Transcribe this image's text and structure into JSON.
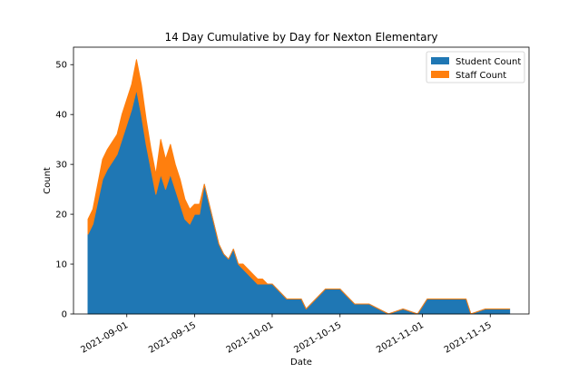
{
  "chart_data": {
    "type": "area",
    "stacked": true,
    "title": "14 Day Cumulative by Day for Nexton Elementary",
    "xlabel": "Date",
    "ylabel": "Count",
    "xlim": [
      "2021-08-21",
      "2021-11-23"
    ],
    "ylim": [
      0,
      53.5
    ],
    "xticks": [
      "2021-09-01",
      "2021-09-15",
      "2021-10-01",
      "2021-10-15",
      "2021-11-01",
      "2021-11-15"
    ],
    "yticks": [
      0,
      10,
      20,
      30,
      40,
      50
    ],
    "grid": false,
    "legend": "upper-right",
    "x": [
      "2021-08-24",
      "2021-08-25",
      "2021-08-27",
      "2021-08-28",
      "2021-08-30",
      "2021-08-31",
      "2021-09-01",
      "2021-09-02",
      "2021-09-03",
      "2021-09-04",
      "2021-09-05",
      "2021-09-06",
      "2021-09-07",
      "2021-09-08",
      "2021-09-09",
      "2021-09-10",
      "2021-09-11",
      "2021-09-12",
      "2021-09-13",
      "2021-09-14",
      "2021-09-15",
      "2021-09-16",
      "2021-09-17",
      "2021-09-18",
      "2021-09-19",
      "2021-09-20",
      "2021-09-21",
      "2021-09-22",
      "2021-09-23",
      "2021-09-24",
      "2021-09-25",
      "2021-09-27",
      "2021-09-28",
      "2021-09-29",
      "2021-09-30",
      "2021-10-01",
      "2021-10-04",
      "2021-10-07",
      "2021-10-08",
      "2021-10-12",
      "2021-10-15",
      "2021-10-18",
      "2021-10-21",
      "2021-10-25",
      "2021-10-28",
      "2021-10-31",
      "2021-11-02",
      "2021-11-10",
      "2021-11-11",
      "2021-11-14",
      "2021-11-19"
    ],
    "series": [
      {
        "name": "Student Count",
        "color": "#1f77b4",
        "values": [
          16,
          18,
          27,
          29,
          32,
          35,
          38,
          41,
          45,
          40,
          34,
          29,
          24,
          28,
          25,
          28,
          25,
          22,
          19,
          18,
          20,
          20,
          26,
          22,
          18,
          14,
          12,
          11,
          13,
          10,
          9,
          7,
          6,
          6,
          6,
          6,
          3,
          3,
          1,
          5,
          5,
          2,
          2,
          0,
          1,
          0,
          3,
          3,
          0,
          1,
          1
        ]
      },
      {
        "name": "Staff Count",
        "color": "#ff7f0e",
        "values": [
          3,
          3,
          4,
          4,
          4,
          5,
          5,
          5,
          6,
          6,
          5,
          4,
          4,
          7,
          6,
          6,
          5,
          5,
          4,
          3,
          2,
          2,
          0,
          0,
          0,
          0,
          0,
          0,
          0,
          0,
          1,
          1,
          1,
          1,
          0,
          0,
          0,
          0,
          0,
          0,
          0,
          0,
          0,
          0,
          0,
          0,
          0,
          0,
          0,
          0,
          0
        ]
      }
    ]
  }
}
